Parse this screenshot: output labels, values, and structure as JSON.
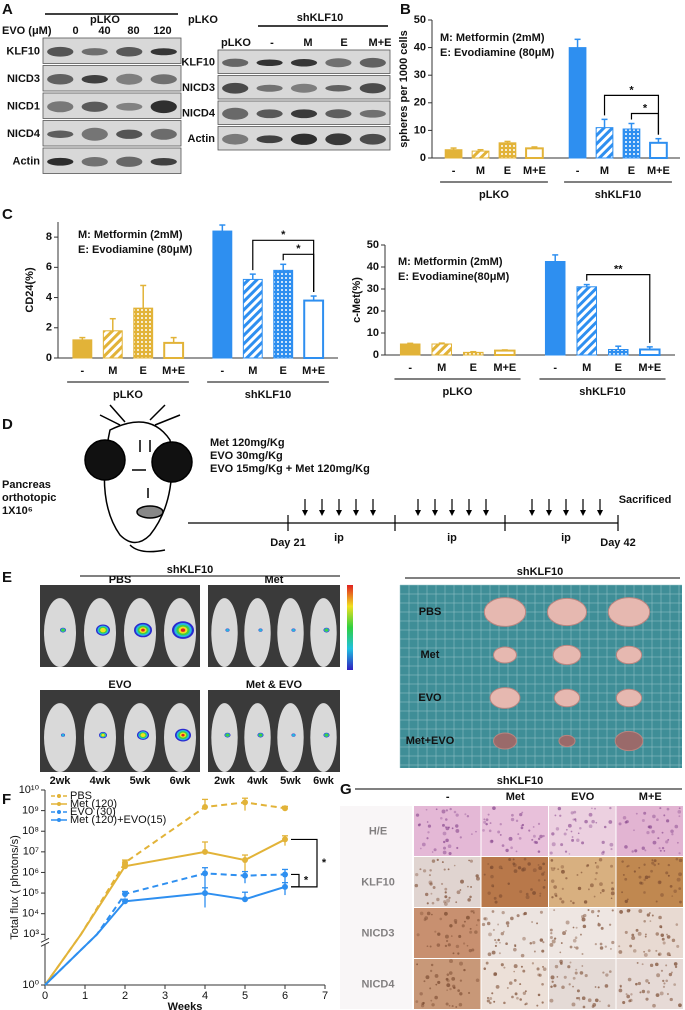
{
  "panel_labels": [
    "A",
    "B",
    "C",
    "D",
    "E",
    "F",
    "G"
  ],
  "blots": [
    {
      "header": "pLKO",
      "dose_label": "EVO (μM)",
      "lanes": [
        "0",
        "40",
        "80",
        "120"
      ],
      "rows": [
        "KLF10",
        "NICD3",
        "NICD1",
        "NICD4",
        "Actin"
      ]
    },
    {
      "headers": [
        "pLKO",
        "shKLF10"
      ],
      "lanes": [
        "pLKO",
        "-",
        "M",
        "E",
        "M+E"
      ],
      "rows": [
        "KLF10",
        "NICD3",
        "NICD4",
        "Actin"
      ]
    }
  ],
  "chart_data": [
    {
      "type": "bar",
      "ylabel": "spheres per 1000 cells",
      "notes": [
        "M: Metformin  (2mM)",
        "E: Evodiamine (80μM)"
      ],
      "categories": [
        "-",
        "M",
        "E",
        "M+E"
      ],
      "patterns": [
        "solid",
        "stripes",
        "dots",
        "open"
      ],
      "series": [
        {
          "name": "pLKO",
          "color": "#e2b338",
          "values": [
            3,
            2.5,
            5.5,
            3.5
          ],
          "errors": [
            0.6,
            0.5,
            0.5,
            0.5
          ]
        },
        {
          "name": "shKLF10",
          "color": "#2e8ff0",
          "values": [
            40,
            11,
            10.5,
            5.5
          ],
          "errors": [
            3,
            3,
            2,
            1.5
          ]
        }
      ],
      "ylim": [
        0,
        50
      ],
      "yticks": [
        0,
        10,
        20,
        30,
        40,
        50
      ],
      "annotations": [
        {
          "text": "*",
          "from": [
            1,
            1
          ],
          "to": [
            1,
            3
          ]
        },
        {
          "text": "*",
          "from": [
            1,
            2
          ],
          "to": [
            1,
            3
          ]
        }
      ]
    },
    {
      "type": "bar",
      "ylabel": "CD24(%)",
      "notes": [
        "M: Metformin  (2mM)",
        "E: Evodiamine (80μM)"
      ],
      "categories": [
        "-",
        "M",
        "E",
        "M+E"
      ],
      "patterns": [
        "solid",
        "stripes",
        "dots",
        "open"
      ],
      "series": [
        {
          "name": "pLKO",
          "color": "#e2b338",
          "values": [
            1.2,
            1.8,
            3.3,
            1.0
          ],
          "errors": [
            0.15,
            0.8,
            1.5,
            0.35
          ]
        },
        {
          "name": "shKLF10",
          "color": "#2e8ff0",
          "values": [
            8.4,
            5.2,
            5.8,
            3.8
          ],
          "errors": [
            0.4,
            0.35,
            0.4,
            0.3
          ]
        }
      ],
      "ylim": [
        0,
        9
      ],
      "yticks": [
        0,
        2,
        4,
        6,
        8
      ],
      "annotations": [
        {
          "text": "*",
          "from": [
            1,
            1
          ],
          "to": [
            1,
            3
          ]
        },
        {
          "text": "*",
          "from": [
            1,
            2
          ],
          "to": [
            1,
            3
          ]
        }
      ]
    },
    {
      "type": "bar",
      "ylabel": "c-Met(%)",
      "notes": [
        "M: Metformin  (2mM)",
        "E: Evodiamine(80μM)"
      ],
      "categories": [
        "-",
        "M",
        "E",
        "M+E"
      ],
      "patterns": [
        "solid",
        "stripes",
        "dots",
        "open"
      ],
      "series": [
        {
          "name": "pLKO",
          "color": "#e2b338",
          "values": [
            5,
            5,
            1.2,
            2
          ],
          "errors": [
            0.3,
            0.4,
            0.3,
            0.3
          ]
        },
        {
          "name": "shKLF10",
          "color": "#2e8ff0",
          "values": [
            42.5,
            31,
            2.5,
            2.5
          ],
          "errors": [
            3,
            1,
            1.5,
            1.2
          ]
        }
      ],
      "ylim": [
        0,
        50
      ],
      "yticks": [
        0,
        10,
        20,
        30,
        40,
        50
      ],
      "annotations": [
        {
          "text": "**",
          "from": [
            1,
            1
          ],
          "to": [
            1,
            3
          ]
        }
      ]
    },
    {
      "type": "line",
      "xlabel": "Weeks",
      "ylabel": "Total flux ( photons/s)",
      "log": true,
      "ybreak": 1000,
      "xlim": [
        0,
        7
      ],
      "xticks": [
        0,
        1,
        2,
        3,
        4,
        5,
        6,
        7
      ],
      "ylim": [
        1,
        10000000000
      ],
      "yticks": [
        {
          "value": 1,
          "label": "10⁰"
        },
        {
          "value": 1000,
          "label": "10³"
        },
        {
          "value": 10000,
          "label": "10⁴"
        },
        {
          "value": 100000,
          "label": "10⁵"
        },
        {
          "value": 1000000,
          "label": "10⁶"
        },
        {
          "value": 10000000,
          "label": "10⁷"
        },
        {
          "value": 100000000,
          "label": "10⁸"
        },
        {
          "value": 1000000000,
          "label": "10⁹"
        },
        {
          "value": 10000000000,
          "label": "10¹⁰"
        }
      ],
      "series": [
        {
          "name": "PBS",
          "color": "#e2b338",
          "dashed": true,
          "x": [
            0,
            0.9,
            2,
            4,
            5,
            6
          ],
          "values": [
            1,
            1000,
            3000000,
            1500000000,
            2500000000,
            1300000000
          ],
          "errors": [
            null,
            null,
            1000000,
            2000000000,
            1500000000,
            300000000
          ]
        },
        {
          "name": "Met (120)",
          "color": "#e2b338",
          "dashed": false,
          "x": [
            0,
            0.9,
            2,
            4,
            5,
            6
          ],
          "values": [
            1,
            1000,
            2000000,
            10000000,
            4000000,
            40000000
          ],
          "errors": [
            null,
            null,
            500000,
            20000000,
            3000000,
            20000000
          ]
        },
        {
          "name": "EVO (30)",
          "color": "#2e8ff0",
          "dashed": true,
          "x": [
            0,
            1.3,
            2,
            4,
            5,
            6
          ],
          "values": [
            1,
            1000,
            90000,
            900000,
            700000,
            800000
          ],
          "errors": [
            null,
            null,
            30000,
            800000,
            400000,
            600000
          ]
        },
        {
          "name": "Met (120)+EVO(15)",
          "color": "#2e8ff0",
          "dashed": false,
          "x": [
            0,
            1.3,
            2,
            4,
            5,
            6
          ],
          "values": [
            1,
            1000,
            40000,
            100000,
            50000,
            200000
          ],
          "errors": [
            null,
            null,
            10000,
            80000,
            60000,
            120000
          ]
        }
      ],
      "annotations": [
        {
          "text": "*",
          "from": 1,
          "to": 3
        },
        {
          "text": "*",
          "from": 2,
          "to": 3
        }
      ]
    }
  ],
  "schedule": {
    "injection": [
      "Pancreas",
      "orthotopic",
      "1X10⁶"
    ],
    "treatments": [
      "Met 120mg/Kg",
      "EVO 30mg/Kg",
      "EVO 15mg/Kg + Met 120mg/Kg"
    ],
    "route": [
      "ip",
      "ip",
      "ip"
    ],
    "start": "Day 21",
    "end": "Day 42",
    "end_label": "Sacrificed"
  },
  "imaging": {
    "title": "shKLF10",
    "groups": [
      "PBS",
      "Met",
      "EVO",
      "Met & EVO"
    ],
    "weeks": [
      "2wk",
      "4wk",
      "5wk",
      "6wk",
      "2wk",
      "4wk",
      "5wk",
      "6wk"
    ]
  },
  "tumors": {
    "title": "shKLF10",
    "rows": [
      "PBS",
      "Met",
      "EVO",
      "Met+EVO"
    ]
  },
  "histology": {
    "title": "shKLF10",
    "columns": [
      "-",
      "Met",
      "EVO",
      "M+E"
    ],
    "rows": [
      "H/E",
      "KLF10",
      "NICD3",
      "NICD4"
    ]
  }
}
